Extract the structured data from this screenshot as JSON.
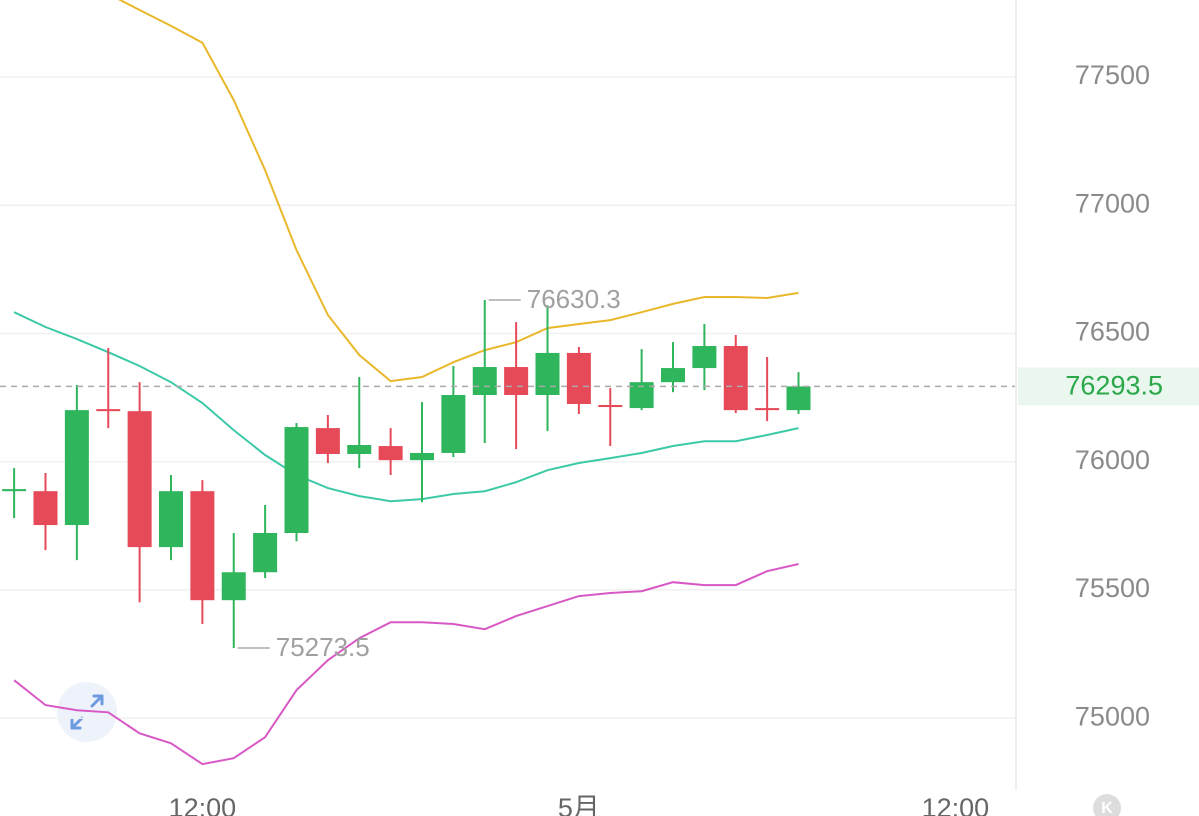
{
  "chart_data": {
    "type": "candlestick",
    "x": [
      0,
      1,
      2,
      3,
      4,
      5,
      6,
      7,
      8,
      9,
      10,
      11,
      12,
      13,
      14,
      15,
      16,
      17,
      18,
      19,
      20,
      21,
      22,
      23,
      24,
      25
    ],
    "open": [
      75885,
      75885,
      75753,
      76205,
      76197,
      75667,
      75885,
      75460,
      75569,
      75722,
      76131,
      76030,
      76061,
      76006,
      76034,
      76260,
      76369,
      76260,
      76424,
      76221,
      76209,
      76310,
      76365,
      76451,
      76209,
      76201
    ],
    "high": [
      75975,
      75956,
      76299,
      76443,
      76310,
      75948,
      75928,
      75722,
      75831,
      76151,
      76182,
      76330,
      76131,
      76232,
      76373,
      76630.3,
      76544,
      76610,
      76447,
      76287,
      76439,
      76466,
      76537,
      76494,
      76408,
      76349
    ],
    "low": [
      75780,
      75655,
      75616,
      76131,
      75452,
      75616,
      75367,
      75273.5,
      75546,
      75690,
      75995,
      75975,
      75948,
      75842,
      76018,
      76073,
      76049,
      76119,
      76186,
      76061,
      76201,
      76271,
      76279,
      76190,
      76158,
      76186
    ],
    "close": [
      75893,
      75753,
      76201,
      76197,
      75667,
      75885,
      75460,
      75569,
      75722,
      76135,
      76030,
      76065,
      76006,
      76034,
      76260,
      76369,
      76260,
      76424,
      76225,
      76213,
      76310,
      76365,
      76451,
      76201,
      76201,
      76293.5
    ],
    "up_color": "#2fb55b",
    "down_color": "#e64a59",
    "overlays": [
      {
        "color": "#e9b82a",
        "values": [
          null,
          null,
          null,
          77824,
          77761,
          77699,
          77633,
          77410,
          77137,
          76825,
          76572,
          76416,
          76314,
          76330,
          76388,
          76435,
          76466,
          76521,
          76537,
          76552,
          76583,
          76615,
          76642,
          76642,
          76638,
          76658
        ]
      },
      {
        "color": "#3cc9a8",
        "values": [
          76583,
          76525,
          76478,
          76427,
          76373,
          76310,
          76229,
          76123,
          76026,
          75948,
          75897,
          75866,
          75846,
          75854,
          75874,
          75885,
          75920,
          75967,
          75995,
          76014,
          76034,
          76061,
          76080,
          76080,
          76104,
          76131
        ]
      },
      {
        "color": "#d858c6",
        "values": [
          75148,
          75051,
          75031,
          75023,
          74941,
          74902,
          74821,
          74844,
          74926,
          75109,
          75226,
          75312,
          75374,
          75374,
          75367,
          75347,
          75398,
          75437,
          75476,
          75488,
          75495,
          75530,
          75519,
          75519,
          75573,
          75601
        ]
      }
    ],
    "annotations": [
      {
        "x": 15,
        "value": 76630.3
      },
      {
        "x": 7,
        "value": 75273.5
      }
    ],
    "last_price": 76293.5,
    "last_price_color": "#2aa84a",
    "xlim": [
      -0.45,
      31.9
    ],
    "xticks": [
      {
        "value": 6,
        "label": "12:00"
      },
      {
        "value": 18,
        "label": "5月"
      },
      {
        "value": 30,
        "label": "12:00"
      }
    ],
    "ylim": [
      74720,
      77800
    ],
    "yticks": [
      75000,
      75500,
      76000,
      76500,
      77000,
      77500
    ],
    "grid": true
  },
  "corner_badge": "K"
}
